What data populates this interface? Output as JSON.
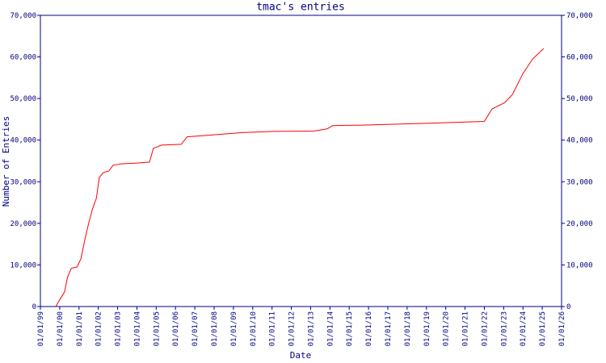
{
  "chart_data": {
    "type": "line",
    "title": "tmac's entries",
    "x_label": "Date",
    "y_label": "Number of Entries",
    "xlim": [
      1999,
      2026
    ],
    "xticks": [
      {
        "value": 1999,
        "label": "01/01/99"
      },
      {
        "value": 2000,
        "label": "01/01/00"
      },
      {
        "value": 2001,
        "label": "01/01/01"
      },
      {
        "value": 2002,
        "label": "01/01/02"
      },
      {
        "value": 2003,
        "label": "01/01/03"
      },
      {
        "value": 2004,
        "label": "01/01/04"
      },
      {
        "value": 2005,
        "label": "01/01/05"
      },
      {
        "value": 2006,
        "label": "01/01/06"
      },
      {
        "value": 2007,
        "label": "01/01/07"
      },
      {
        "value": 2008,
        "label": "01/01/08"
      },
      {
        "value": 2009,
        "label": "01/01/09"
      },
      {
        "value": 2010,
        "label": "01/01/10"
      },
      {
        "value": 2011,
        "label": "01/01/11"
      },
      {
        "value": 2012,
        "label": "01/01/12"
      },
      {
        "value": 2013,
        "label": "01/01/13"
      },
      {
        "value": 2014,
        "label": "01/01/14"
      },
      {
        "value": 2015,
        "label": "01/01/15"
      },
      {
        "value": 2016,
        "label": "01/01/16"
      },
      {
        "value": 2017,
        "label": "01/01/17"
      },
      {
        "value": 2018,
        "label": "01/01/18"
      },
      {
        "value": 2019,
        "label": "01/01/19"
      },
      {
        "value": 2020,
        "label": "01/01/20"
      },
      {
        "value": 2021,
        "label": "01/01/21"
      },
      {
        "value": 2022,
        "label": "01/01/22"
      },
      {
        "value": 2023,
        "label": "01/01/23"
      },
      {
        "value": 2024,
        "label": "01/01/24"
      },
      {
        "value": 2025,
        "label": "01/01/25"
      },
      {
        "value": 2026,
        "label": "01/01/26"
      }
    ],
    "ylim": [
      0,
      70000
    ],
    "yticks": [
      0,
      {
        "value": 10000,
        "label": "10,000"
      },
      {
        "value": 20000,
        "label": "20,000"
      },
      {
        "value": 30000,
        "label": "30,000"
      },
      {
        "value": 40000,
        "label": "40,000"
      },
      {
        "value": 50000,
        "label": "50,000"
      },
      {
        "value": 60000,
        "label": "60,000"
      },
      {
        "value": 70000,
        "label": "70,000"
      }
    ],
    "x": [
      1999.8,
      1999.92,
      2000.05,
      2000.25,
      2000.4,
      2000.6,
      2000.9,
      2001.1,
      2001.3,
      2001.5,
      2001.7,
      2001.9,
      2002.05,
      2002.26,
      2002.55,
      2002.77,
      2003.2,
      2004.0,
      2004.65,
      2004.85,
      2005.27,
      2006.3,
      2006.6,
      2007.8,
      2009.46,
      2011.1,
      2013.2,
      2013.85,
      2014.15,
      2015.7,
      2018.66,
      2022.0,
      2022.4,
      2023.05,
      2023.46,
      2024.0,
      2024.5,
      2025.07
    ],
    "series": [
      {
        "color": "#ff0000",
        "values": [
          0,
          1000,
          2000,
          3500,
          7000,
          9200,
          9500,
          11500,
          16000,
          20000,
          23500,
          26000,
          31000,
          32200,
          32600,
          34000,
          34300,
          34500,
          34700,
          38000,
          38800,
          39000,
          40800,
          41200,
          41800,
          42100,
          42200,
          42700,
          43500,
          43600,
          44000,
          44500,
          47500,
          49000,
          51000,
          56000,
          59500,
          62000
        ]
      }
    ]
  }
}
